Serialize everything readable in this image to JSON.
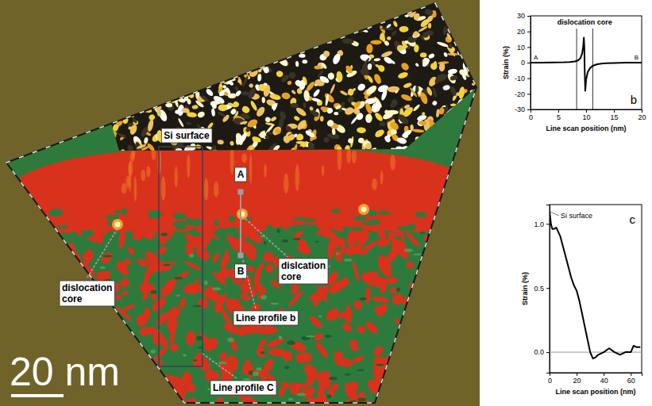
{
  "image": {
    "labels": [
      "Si surface",
      "A",
      "B",
      "dislocation core",
      "dislcation core",
      "Line profile b",
      "Line profile C"
    ],
    "scale_bar": "20 nm"
  },
  "chart_data": [
    {
      "type": "line",
      "panel": "b",
      "xlabel": "Line scan position (nm)",
      "ylabel": "Strain (%)",
      "annotations": [
        "dislocation core",
        "A",
        "B"
      ],
      "core_bounds": [
        8.3,
        11.2
      ],
      "x": [
        0,
        2,
        4,
        6,
        7,
        8,
        8.6,
        9,
        9.3,
        9.5,
        9.6,
        9.68,
        9.75,
        9.85,
        10,
        10.3,
        10.7,
        11.2,
        12,
        13,
        15,
        17,
        20
      ],
      "values": [
        0,
        0,
        0.1,
        0.2,
        0.4,
        0.8,
        1.5,
        3,
        6,
        11,
        16,
        10,
        -5,
        -18,
        -11,
        -6,
        -3.5,
        -2,
        -1,
        -0.5,
        -0.2,
        0,
        0
      ],
      "color": "#000000",
      "xlim": [
        0,
        20
      ],
      "ylim": [
        -30,
        30
      ],
      "xticks": [
        0,
        5,
        10,
        15,
        20
      ],
      "yticks": [
        -30,
        -20,
        -10,
        0,
        10,
        20,
        30
      ]
    },
    {
      "type": "line",
      "panel": "c",
      "xlabel": "Line scan position (nm)",
      "ylabel": "Strain (%)",
      "annotations": [
        "Si surface"
      ],
      "reference_line": 0,
      "x": [
        0,
        1,
        2,
        3,
        5,
        8,
        10,
        12,
        14,
        16,
        18,
        20,
        22,
        24,
        26,
        28,
        30,
        32,
        34,
        36,
        40,
        44,
        48,
        52,
        56,
        60,
        62,
        64,
        67
      ],
      "values": [
        1.1,
        1.0,
        0.96,
        0.96,
        0.97,
        0.9,
        0.82,
        0.74,
        0.66,
        0.58,
        0.52,
        0.48,
        0.4,
        0.3,
        0.2,
        0.1,
        0.0,
        -0.05,
        -0.04,
        -0.02,
        0.0,
        0.03,
        0.0,
        -0.02,
        0.0,
        0.0,
        0.05,
        0.04,
        0.04
      ],
      "color": "#000000",
      "xlim": [
        0,
        68
      ],
      "ylim": [
        -0.16,
        1.15
      ],
      "xticks": [
        0,
        20,
        40,
        60
      ],
      "yticks": [
        {
          "value": 0,
          "label": "0.0"
        },
        {
          "value": 0.5,
          "label": "0.5"
        },
        {
          "value": 1,
          "label": "1.0"
        }
      ]
    }
  ]
}
